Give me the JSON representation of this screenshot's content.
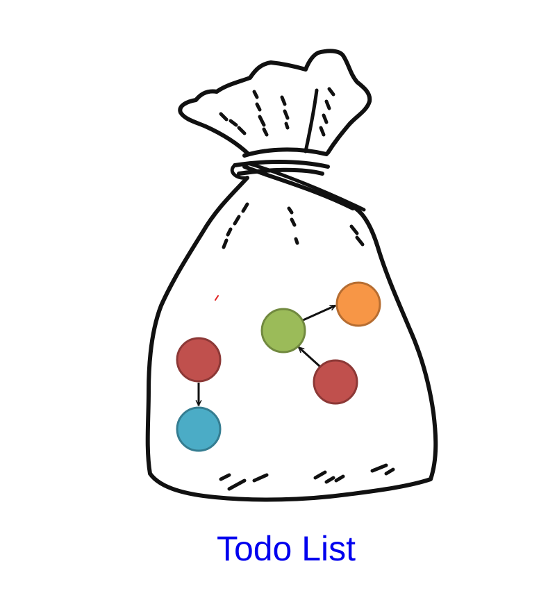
{
  "caption": "Todo List",
  "colors": {
    "caption": "#0000ee",
    "outline": "#111111",
    "red": "#c0504d",
    "red_stroke": "#8c3836",
    "blue": "#4bacc6",
    "blue_stroke": "#357d91",
    "green": "#9bbb59",
    "green_stroke": "#71893f",
    "orange": "#f79646",
    "orange_stroke": "#b66d31"
  },
  "nodes": [
    {
      "id": "red-top-left",
      "color": "red"
    },
    {
      "id": "blue-bottom-left",
      "color": "blue"
    },
    {
      "id": "green-center",
      "color": "green"
    },
    {
      "id": "orange-top-right",
      "color": "orange"
    },
    {
      "id": "red-bottom-right",
      "color": "red"
    }
  ],
  "edges": [
    {
      "from": "red-top-left",
      "to": "blue-bottom-left"
    },
    {
      "from": "green-center",
      "to": "orange-top-right"
    },
    {
      "from": "red-bottom-right",
      "to": "green-center"
    }
  ]
}
